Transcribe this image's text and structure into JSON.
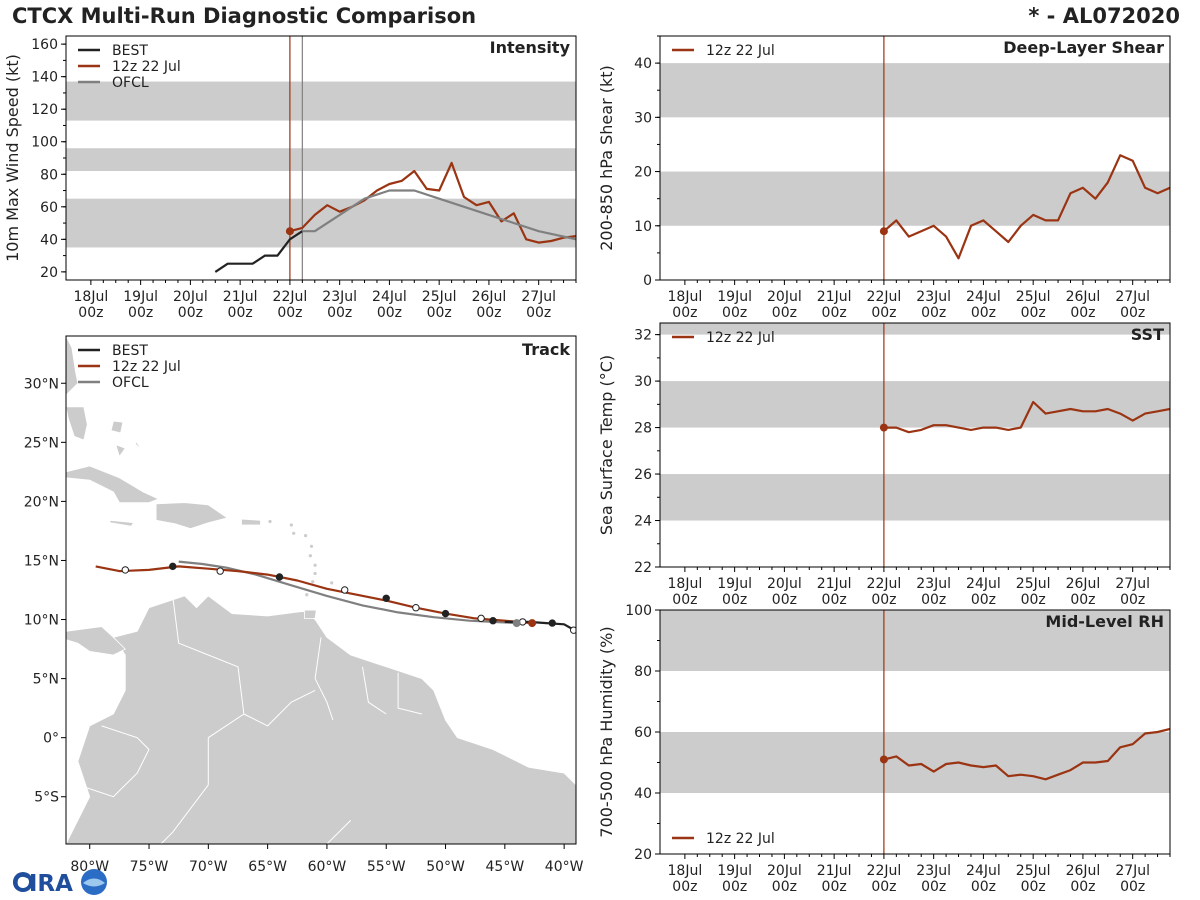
{
  "header": {
    "title": "CTCX Multi-Run Diagnostic Comparison",
    "storm_id": "* - AL072020"
  },
  "logo": {
    "text": "CIRA"
  },
  "colors": {
    "best": "#222222",
    "run": "#9a3412",
    "ofcl": "#808080",
    "band": "#cccccc",
    "land": "#cccccc"
  },
  "time_ticks": [
    "18Jul\n00z",
    "19Jul\n00z",
    "20Jul\n00z",
    "21Jul\n00z",
    "22Jul\n00z",
    "23Jul\n00z",
    "24Jul\n00z",
    "25Jul\n00z",
    "26Jul\n00z",
    "27Jul\n00z"
  ],
  "chart_data": [
    {
      "id": "intensity",
      "type": "line",
      "title": "Intensity",
      "ylabel": "10m Max Wind Speed (kt)",
      "xlabel": "",
      "xlim": [
        -4.5,
        5.75
      ],
      "ylim": [
        15,
        165
      ],
      "yticks": [
        20,
        40,
        60,
        80,
        100,
        120,
        140,
        160
      ],
      "bands": [
        [
          35,
          65
        ],
        [
          82,
          96
        ],
        [
          113,
          137
        ]
      ],
      "vlines": [
        {
          "x": 0,
          "series": "run"
        },
        {
          "x": 0.25,
          "series": "ofcl"
        }
      ],
      "legend": [
        "BEST",
        "12z 22 Jul",
        "OFCL"
      ],
      "series": [
        {
          "name": "BEST",
          "key": "best",
          "x": [
            -1.5,
            -1.25,
            -1.0,
            -0.75,
            -0.5,
            -0.25,
            0.0,
            0.25
          ],
          "y": [
            20,
            25,
            25,
            25,
            30,
            30,
            40,
            45
          ]
        },
        {
          "name": "12z 22 Jul",
          "key": "run",
          "marker_first": true,
          "x": [
            0.0,
            0.25,
            0.5,
            0.75,
            1.0,
            1.25,
            1.5,
            1.75,
            2.0,
            2.25,
            2.5,
            2.75,
            3.0,
            3.25,
            3.5,
            3.75,
            4.0,
            4.25,
            4.5,
            4.75,
            5.0,
            5.25,
            5.5,
            5.75
          ],
          "y": [
            45,
            47,
            55,
            61,
            57,
            60,
            64,
            70,
            74,
            76,
            82,
            71,
            70,
            87,
            66,
            61,
            63,
            51,
            56,
            40,
            38,
            39,
            41,
            42
          ]
        },
        {
          "name": "OFCL",
          "key": "ofcl",
          "x": [
            0.25,
            0.5,
            1.0,
            1.5,
            2.0,
            2.5,
            3.0,
            4.0,
            5.0,
            5.75
          ],
          "y": [
            45,
            45,
            55,
            65,
            70,
            70,
            65,
            55,
            45,
            40
          ]
        }
      ]
    },
    {
      "id": "shear",
      "type": "line",
      "title": "Deep-Layer Shear",
      "ylabel": "200-850 hPa Shear (kt)",
      "xlabel": "",
      "xlim": [
        -4.5,
        5.75
      ],
      "ylim": [
        0,
        45
      ],
      "yticks": [
        0,
        10,
        20,
        30,
        40
      ],
      "bands": [
        [
          10,
          20
        ],
        [
          30,
          40
        ]
      ],
      "vlines": [
        {
          "x": 0,
          "series": "run"
        }
      ],
      "legend": [
        "12z 22 Jul"
      ],
      "series": [
        {
          "name": "12z 22 Jul",
          "key": "run",
          "marker_first": true,
          "x": [
            0.0,
            0.25,
            0.5,
            0.75,
            1.0,
            1.25,
            1.5,
            1.75,
            2.0,
            2.25,
            2.5,
            2.75,
            3.0,
            3.25,
            3.5,
            3.75,
            4.0,
            4.25,
            4.5,
            4.75,
            5.0,
            5.25,
            5.5,
            5.75
          ],
          "y": [
            9,
            11,
            8,
            9,
            10,
            8,
            4,
            10,
            11,
            9,
            7,
            10,
            12,
            11,
            11,
            16,
            17,
            15,
            18,
            23,
            22,
            17,
            16,
            17
          ]
        }
      ]
    },
    {
      "id": "sst",
      "type": "line",
      "title": "SST",
      "ylabel": "Sea Surface Temp (°C)",
      "xlabel": "",
      "xlim": [
        -4.5,
        5.75
      ],
      "ylim": [
        22,
        32.5
      ],
      "yticks": [
        22,
        24,
        26,
        28,
        30,
        32
      ],
      "bands": [
        [
          24,
          26
        ],
        [
          28,
          30
        ],
        [
          32,
          32.5
        ]
      ],
      "vlines": [
        {
          "x": 0,
          "series": "run"
        }
      ],
      "legend": [
        "12z 22 Jul"
      ],
      "series": [
        {
          "name": "12z 22 Jul",
          "key": "run",
          "marker_first": true,
          "x": [
            0.0,
            0.25,
            0.5,
            0.75,
            1.0,
            1.25,
            1.5,
            1.75,
            2.0,
            2.25,
            2.5,
            2.75,
            3.0,
            3.25,
            3.5,
            3.75,
            4.0,
            4.25,
            4.5,
            4.75,
            5.0,
            5.25,
            5.5,
            5.75
          ],
          "y": [
            28.0,
            28.0,
            27.8,
            27.9,
            28.1,
            28.1,
            28.0,
            27.9,
            28.0,
            28.0,
            27.9,
            28.0,
            29.1,
            28.6,
            28.7,
            28.8,
            28.7,
            28.7,
            28.8,
            28.6,
            28.3,
            28.6,
            28.7,
            28.8
          ]
        }
      ]
    },
    {
      "id": "rh",
      "type": "line",
      "title": "Mid-Level RH",
      "ylabel": "700-500 hPa Humidity (%)",
      "xlabel": "",
      "xlim": [
        -4.5,
        5.75
      ],
      "ylim": [
        20,
        100
      ],
      "yticks": [
        20,
        40,
        60,
        80,
        100
      ],
      "bands": [
        [
          40,
          60
        ],
        [
          80,
          100
        ]
      ],
      "vlines": [
        {
          "x": 0,
          "series": "run"
        }
      ],
      "legend": [
        "12z 22 Jul"
      ],
      "legend_position": "bottom-left",
      "series": [
        {
          "name": "12z 22 Jul",
          "key": "run",
          "marker_first": true,
          "x": [
            0.0,
            0.25,
            0.5,
            0.75,
            1.0,
            1.25,
            1.5,
            1.75,
            2.0,
            2.25,
            2.5,
            2.75,
            3.0,
            3.25,
            3.5,
            3.75,
            4.0,
            4.25,
            4.5,
            4.75,
            5.0,
            5.25,
            5.5,
            5.75
          ],
          "y": [
            51,
            52,
            49,
            49.5,
            47,
            49.5,
            50,
            49,
            48.5,
            49,
            45.5,
            46,
            45.5,
            44.5,
            46,
            47.5,
            50,
            50,
            50.5,
            55,
            56,
            59.5,
            60,
            61
          ]
        }
      ]
    },
    {
      "id": "track",
      "type": "line",
      "title": "Track",
      "xlabel": "",
      "ylabel": "",
      "xlim": [
        -82,
        -39
      ],
      "ylim": [
        -9,
        34
      ],
      "xticks": [
        -80,
        -75,
        -70,
        -65,
        -60,
        -55,
        -50,
        -45,
        -40
      ],
      "xtick_labels": [
        "80°W",
        "75°W",
        "70°W",
        "65°W",
        "60°W",
        "55°W",
        "50°W",
        "45°W",
        "40°W"
      ],
      "yticks": [
        -5,
        0,
        5,
        10,
        15,
        20,
        25,
        30
      ],
      "ytick_labels": [
        "5°S",
        "0°",
        "5°N",
        "10°N",
        "15°N",
        "20°N",
        "25°N",
        "30°N"
      ],
      "legend": [
        "BEST",
        "12z 22 Jul",
        "OFCL"
      ],
      "series": [
        {
          "name": "BEST",
          "key": "best",
          "lon": [
            -39.0,
            -39.3,
            -40.0,
            -41.5,
            -43.0,
            -45.0
          ],
          "lat": [
            9.0,
            9.2,
            9.6,
            9.7,
            9.8,
            9.8
          ]
        },
        {
          "name": "12z 22 Jul",
          "key": "run",
          "lon": [
            -42.7,
            -45.0,
            -47.5,
            -50.0,
            -52.5,
            -55.0,
            -57.5,
            -60.0,
            -62.5,
            -65.0,
            -67.5,
            -70.0,
            -72.5,
            -75.0,
            -77.5,
            -79.5
          ],
          "lat": [
            9.7,
            9.9,
            10.1,
            10.5,
            11.0,
            11.6,
            12.1,
            12.6,
            13.3,
            13.8,
            14.1,
            14.3,
            14.5,
            14.2,
            14.1,
            14.5
          ]
        },
        {
          "name": "OFCL",
          "key": "ofcl",
          "lon": [
            -44.0,
            -46.0,
            -48.0,
            -51.0,
            -54.0,
            -57.0,
            -60.0,
            -63.0,
            -66.0,
            -68.5,
            -70.5,
            -72.5
          ],
          "lat": [
            9.7,
            9.8,
            9.9,
            10.2,
            10.6,
            11.2,
            12.0,
            12.9,
            13.8,
            14.4,
            14.7,
            14.9
          ]
        }
      ],
      "markers": [
        {
          "lon": -39.2,
          "lat": 9.1,
          "fill": "white"
        },
        {
          "lon": -41.0,
          "lat": 9.7,
          "fill": "black"
        },
        {
          "lon": -43.5,
          "lat": 9.8,
          "fill": "white"
        },
        {
          "lon": -46.0,
          "lat": 9.9,
          "fill": "black"
        },
        {
          "lon": -47.0,
          "lat": 10.1,
          "fill": "white"
        },
        {
          "lon": -50.0,
          "lat": 10.5,
          "fill": "black"
        },
        {
          "lon": -52.5,
          "lat": 11.0,
          "fill": "white"
        },
        {
          "lon": -55.0,
          "lat": 11.8,
          "fill": "black"
        },
        {
          "lon": -58.5,
          "lat": 12.5,
          "fill": "white"
        },
        {
          "lon": -64.0,
          "lat": 13.6,
          "fill": "black"
        },
        {
          "lon": -69.0,
          "lat": 14.1,
          "fill": "white"
        },
        {
          "lon": -73.0,
          "lat": 14.5,
          "fill": "black"
        },
        {
          "lon": -77.0,
          "lat": 14.2,
          "fill": "white"
        }
      ],
      "current_markers": [
        {
          "lon": -42.7,
          "lat": 9.7,
          "key": "run"
        },
        {
          "lon": -44.0,
          "lat": 9.7,
          "key": "ofcl"
        }
      ]
    }
  ]
}
